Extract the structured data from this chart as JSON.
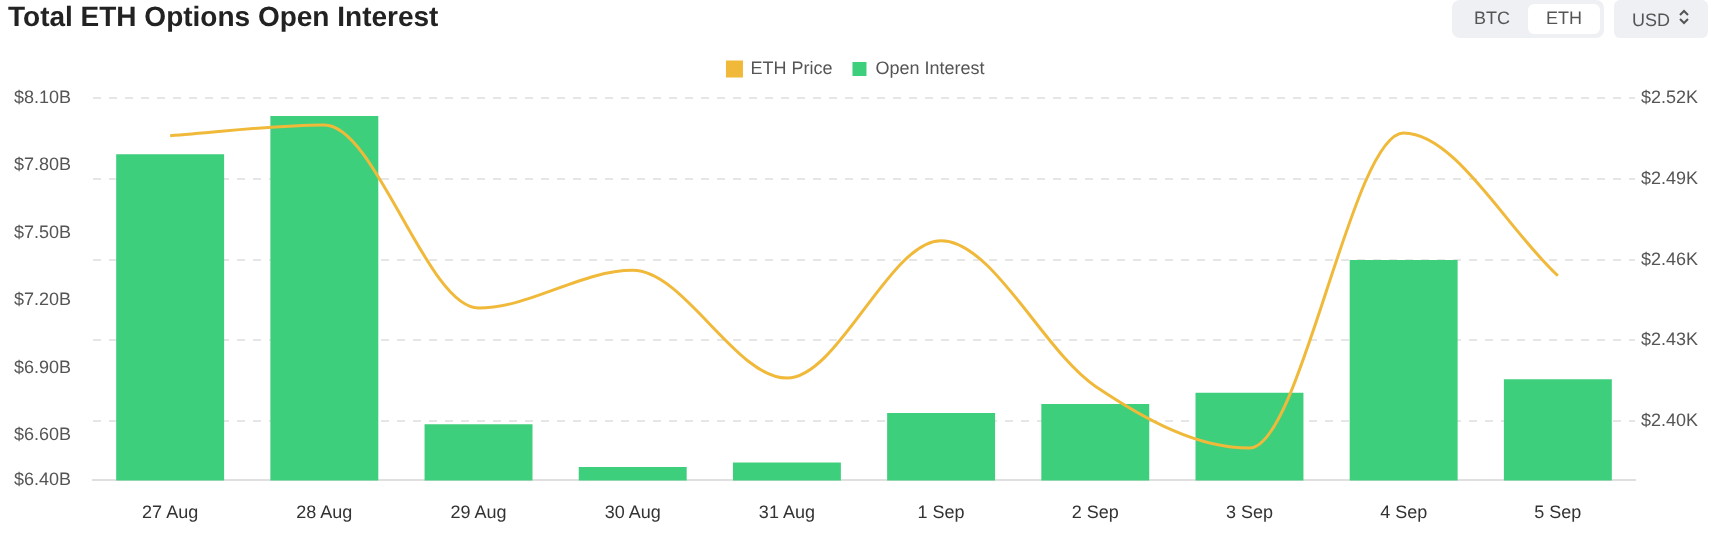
{
  "chart_data": {
    "type": "bar",
    "title": "Total ETH Options Open Interest",
    "annotations": [
      "BTC",
      "ETH",
      "USD"
    ],
    "categories": [
      "27 Aug",
      "28 Aug",
      "29 Aug",
      "30 Aug",
      "31 Aug",
      "1 Sep",
      "2 Sep",
      "3 Sep",
      "4 Sep",
      "5 Sep"
    ],
    "series": [
      {
        "name": "ETH Price",
        "type": "line",
        "axis": "y2",
        "color": "#f0b93a",
        "values": [
          2.506,
          2.51,
          2.442,
          2.456,
          2.416,
          2.467,
          2.413,
          2.39,
          2.507,
          2.454
        ]
      },
      {
        "name": "Open Interest",
        "color": "#3ecf7d",
        "values": [
          7.85,
          8.02,
          6.65,
          6.46,
          6.48,
          6.7,
          6.74,
          6.79,
          7.38,
          6.85
        ]
      }
    ],
    "ylim": [
      6.4,
      8.1
    ],
    "yticks": [
      {
        "value": 6.4,
        "label": "$6.40B"
      },
      {
        "value": 6.6,
        "label": "$6.60B"
      },
      {
        "value": 6.9,
        "label": "$6.90B"
      },
      {
        "value": 7.2,
        "label": "$7.20B"
      },
      {
        "value": 7.5,
        "label": "$7.50B"
      },
      {
        "value": 7.8,
        "label": "$7.80B"
      },
      {
        "value": 8.1,
        "label": "$8.10B"
      }
    ],
    "y2lim": [
      2.378,
      2.52
    ],
    "y2ticks": [
      {
        "value": 2.4,
        "label": "$2.40K"
      },
      {
        "value": 2.43,
        "label": "$2.43K"
      },
      {
        "value": 2.46,
        "label": "$2.46K"
      },
      {
        "value": 2.49,
        "label": "$2.49K"
      },
      {
        "value": 2.52,
        "label": "$2.52K"
      }
    ],
    "grid": "y",
    "legend": "top",
    "marker": "none"
  }
}
